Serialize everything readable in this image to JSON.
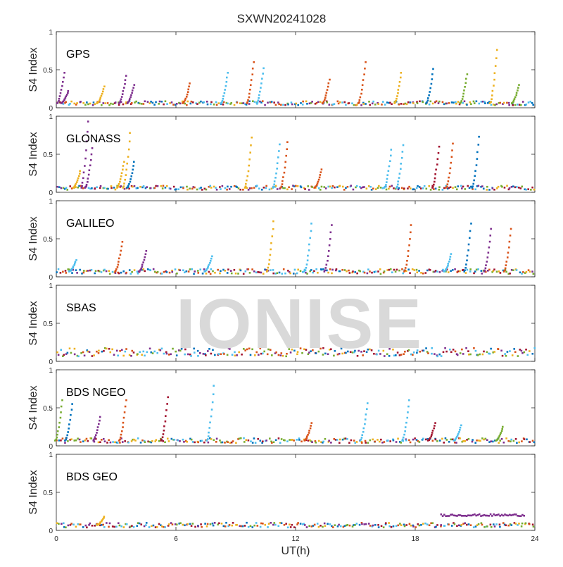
{
  "title": "SXWN20241028",
  "watermark": "IONISE",
  "chart_data": {
    "type": "scatter",
    "xlabel": "UT(h)",
    "xlim": [
      0,
      24
    ],
    "xticks": [
      "0",
      "6",
      "12",
      "18",
      "24"
    ],
    "ylabel": "S4 Index",
    "ylim": [
      0,
      1
    ],
    "yticks": [
      "0",
      "0.5",
      "1"
    ],
    "grid": false,
    "colors": [
      "#0072BD",
      "#D95319",
      "#EDB120",
      "#7E2F8E",
      "#77AC30",
      "#4DBEEE",
      "#A2142F"
    ],
    "panels": [
      {
        "label": "GPS",
        "baseline": 0.06,
        "spikes": [
          {
            "x": 0.4,
            "peak": 0.46,
            "color": 3
          },
          {
            "x": 0.6,
            "peak": 0.22,
            "color": 3
          },
          {
            "x": 2.4,
            "peak": 0.28,
            "color": 2
          },
          {
            "x": 3.5,
            "peak": 0.42,
            "color": 3
          },
          {
            "x": 3.9,
            "peak": 0.3,
            "color": 3
          },
          {
            "x": 6.7,
            "peak": 0.32,
            "color": 1
          },
          {
            "x": 8.6,
            "peak": 0.46,
            "color": 5
          },
          {
            "x": 9.9,
            "peak": 0.6,
            "color": 1
          },
          {
            "x": 10.4,
            "peak": 0.52,
            "color": 5
          },
          {
            "x": 13.7,
            "peak": 0.37,
            "color": 1
          },
          {
            "x": 15.5,
            "peak": 0.6,
            "color": 1
          },
          {
            "x": 17.3,
            "peak": 0.46,
            "color": 2
          },
          {
            "x": 18.9,
            "peak": 0.51,
            "color": 0
          },
          {
            "x": 20.6,
            "peak": 0.44,
            "color": 4
          },
          {
            "x": 22.1,
            "peak": 0.76,
            "color": 2
          },
          {
            "x": 23.2,
            "peak": 0.3,
            "color": 4
          }
        ]
      },
      {
        "label": "GLONASS",
        "baseline": 0.06,
        "spikes": [
          {
            "x": 1.2,
            "peak": 0.28,
            "color": 2
          },
          {
            "x": 1.6,
            "peak": 0.93,
            "color": 3
          },
          {
            "x": 1.8,
            "peak": 0.58,
            "color": 3
          },
          {
            "x": 3.4,
            "peak": 0.4,
            "color": 2
          },
          {
            "x": 3.7,
            "peak": 0.78,
            "color": 2
          },
          {
            "x": 3.9,
            "peak": 0.4,
            "color": 0
          },
          {
            "x": 9.8,
            "peak": 0.72,
            "color": 2
          },
          {
            "x": 11.2,
            "peak": 0.63,
            "color": 5
          },
          {
            "x": 11.6,
            "peak": 0.66,
            "color": 1
          },
          {
            "x": 13.3,
            "peak": 0.3,
            "color": 1
          },
          {
            "x": 16.8,
            "peak": 0.56,
            "color": 5
          },
          {
            "x": 17.4,
            "peak": 0.62,
            "color": 5
          },
          {
            "x": 19.2,
            "peak": 0.6,
            "color": 6
          },
          {
            "x": 19.9,
            "peak": 0.64,
            "color": 1
          },
          {
            "x": 21.2,
            "peak": 0.73,
            "color": 0
          }
        ]
      },
      {
        "label": "GALILEO",
        "baseline": 0.07,
        "spikes": [
          {
            "x": 1.0,
            "peak": 0.22,
            "color": 5
          },
          {
            "x": 3.3,
            "peak": 0.46,
            "color": 1
          },
          {
            "x": 4.5,
            "peak": 0.34,
            "color": 3
          },
          {
            "x": 7.8,
            "peak": 0.27,
            "color": 5
          },
          {
            "x": 10.9,
            "peak": 0.73,
            "color": 2
          },
          {
            "x": 12.8,
            "peak": 0.7,
            "color": 5
          },
          {
            "x": 13.8,
            "peak": 0.68,
            "color": 3
          },
          {
            "x": 17.8,
            "peak": 0.68,
            "color": 1
          },
          {
            "x": 19.8,
            "peak": 0.3,
            "color": 5
          },
          {
            "x": 20.8,
            "peak": 0.7,
            "color": 0
          },
          {
            "x": 21.8,
            "peak": 0.63,
            "color": 3
          },
          {
            "x": 22.8,
            "peak": 0.63,
            "color": 1
          }
        ]
      },
      {
        "label": "SBAS",
        "baseline": 0.12,
        "spikes": []
      },
      {
        "label": "BDS NGEO",
        "baseline": 0.07,
        "spikes": [
          {
            "x": 0.3,
            "peak": 0.6,
            "color": 4
          },
          {
            "x": 0.8,
            "peak": 0.55,
            "color": 0
          },
          {
            "x": 2.2,
            "peak": 0.38,
            "color": 3
          },
          {
            "x": 3.5,
            "peak": 0.6,
            "color": 1
          },
          {
            "x": 5.6,
            "peak": 0.64,
            "color": 6
          },
          {
            "x": 7.9,
            "peak": 0.79,
            "color": 5
          },
          {
            "x": 12.8,
            "peak": 0.3,
            "color": 1
          },
          {
            "x": 15.6,
            "peak": 0.56,
            "color": 5
          },
          {
            "x": 17.7,
            "peak": 0.6,
            "color": 5
          },
          {
            "x": 19.0,
            "peak": 0.3,
            "color": 6
          },
          {
            "x": 20.3,
            "peak": 0.27,
            "color": 5
          },
          {
            "x": 22.4,
            "peak": 0.25,
            "color": 4
          }
        ]
      },
      {
        "label": "BDS GEO",
        "baseline": 0.07,
        "spikes": [
          {
            "x": 2.4,
            "peak": 0.18,
            "color": 2
          }
        ],
        "segments": [
          {
            "x_start": 19.3,
            "x_end": 23.5,
            "y": 0.2,
            "color": 3
          }
        ]
      }
    ]
  }
}
